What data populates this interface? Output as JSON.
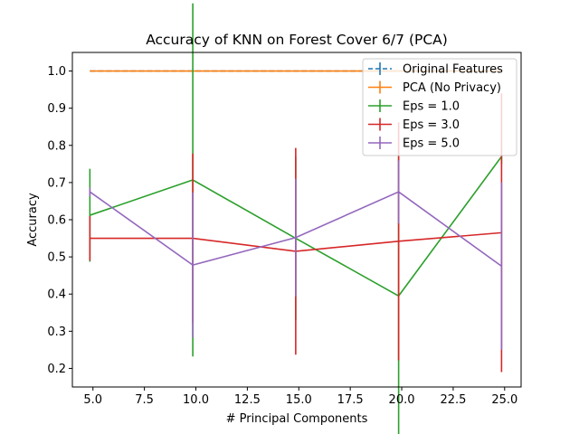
{
  "chart_data": {
    "type": "line",
    "title": "Accuracy of KNN on Forest Cover 6/7 (PCA)",
    "xlabel": "# Principal Components",
    "ylabel": "Accuracy",
    "xlim": [
      4.0,
      25.8
    ],
    "ylim": [
      0.15,
      1.05
    ],
    "xticks": [
      5.0,
      7.5,
      10.0,
      12.5,
      15.0,
      17.5,
      20.0,
      22.5,
      25.0
    ],
    "xtick_labels": [
      "5.0",
      "7.5",
      "10.0",
      "12.5",
      "15.0",
      "17.5",
      "20.0",
      "22.5",
      "25.0"
    ],
    "yticks": [
      0.2,
      0.3,
      0.4,
      0.5,
      0.6,
      0.7,
      0.8,
      0.9,
      1.0
    ],
    "ytick_labels": [
      "0.2",
      "0.3",
      "0.4",
      "0.5",
      "0.6",
      "0.7",
      "0.8",
      "0.9",
      "1.0"
    ],
    "legend_position": "top-right",
    "grid": false,
    "series": [
      {
        "name": "Original Features",
        "color": "#1f77b4",
        "dashed": true,
        "x": [
          4.85,
          9.85,
          14.85,
          19.85,
          24.85
        ],
        "y": [
          1.0,
          1.0,
          1.0,
          1.0,
          1.0
        ],
        "err": [
          0,
          0,
          0,
          0,
          0
        ]
      },
      {
        "name": "PCA (No Privacy)",
        "color": "#ff7f0e",
        "dashed": false,
        "x": [
          4.85,
          9.85,
          14.85,
          19.85,
          24.85
        ],
        "y": [
          1.0,
          1.0,
          1.0,
          1.0,
          1.0
        ],
        "err": [
          0,
          0,
          0,
          0,
          0
        ]
      },
      {
        "name": "Eps = 1.0",
        "color": "#2ca02c",
        "dashed": false,
        "x": [
          4.85,
          9.85,
          14.85,
          19.85,
          24.85
        ],
        "y": [
          0.612,
          0.707,
          0.55,
          0.395,
          0.77
        ],
        "err": [
          0.125,
          0.475,
          0.22,
          0.375,
          0.02
        ]
      },
      {
        "name": "Eps = 3.0",
        "color": "#d62728",
        "dashed": false,
        "x": [
          4.85,
          9.85,
          14.85,
          19.85,
          24.85
        ],
        "y": [
          0.55,
          0.55,
          0.515,
          0.542,
          0.565
        ],
        "err": [
          0.06,
          0.228,
          0.278,
          0.32,
          0.375
        ]
      },
      {
        "name": "Eps = 5.0",
        "color": "#9467bd",
        "dashed": false,
        "x": [
          4.85,
          9.85,
          14.85,
          19.85,
          24.85
        ],
        "y": [
          0.675,
          0.478,
          0.552,
          0.675,
          0.475
        ],
        "err": [
          0.012,
          0.195,
          0.158,
          0.085,
          0.225
        ]
      }
    ]
  }
}
